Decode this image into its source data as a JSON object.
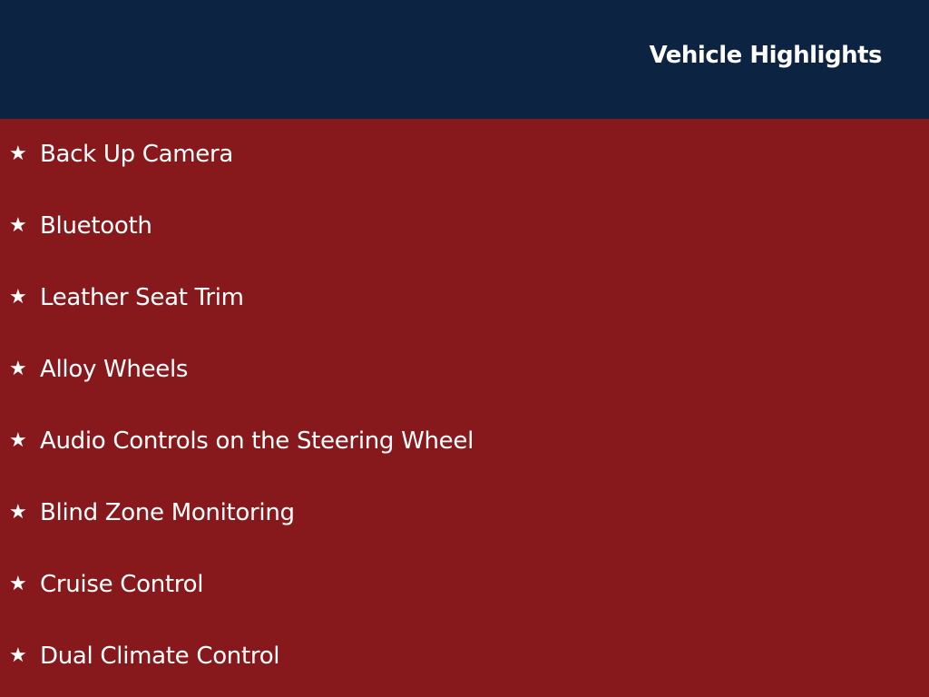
{
  "header": {
    "title": "Vehicle Highlights"
  },
  "colors": {
    "header_bg": "#0c2342",
    "body_bg": "#87191c",
    "text": "#ffffff"
  },
  "bullet_icon": "star-icon",
  "highlights": [
    "Back Up Camera",
    "Bluetooth",
    "Leather Seat Trim",
    "Alloy Wheels",
    "Audio Controls on the Steering Wheel",
    "Blind Zone Monitoring",
    "Cruise Control",
    "Dual Climate Control"
  ]
}
